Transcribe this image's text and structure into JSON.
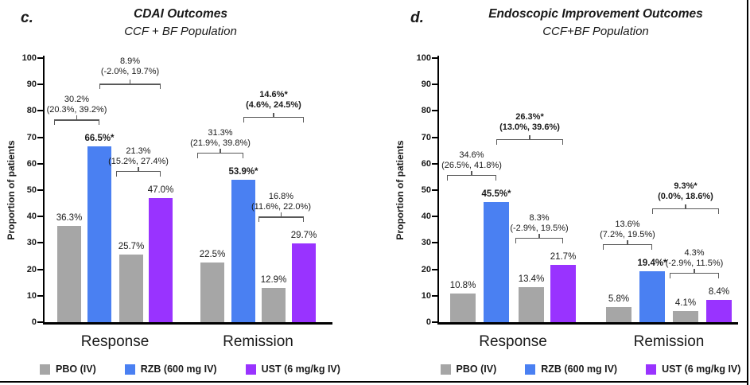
{
  "chart_data": [
    {
      "type": "bar",
      "panel_label": "c.",
      "title": "CDAI Outcomes",
      "subtitle": "CCF + BF Population",
      "ylabel": "Proportion of patients",
      "ylim": [
        0,
        100
      ],
      "yticks": [
        0,
        10,
        20,
        30,
        40,
        50,
        60,
        70,
        80,
        90,
        100
      ],
      "grid": false,
      "legend_position": "bottom",
      "categories": [
        "Response",
        "Remission"
      ],
      "groups": [
        {
          "category": "Response",
          "bars": [
            {
              "series": "PBO (IV)",
              "value": 36.3,
              "label": "36.3%",
              "bold": false
            },
            {
              "series": "RZB (600 mg IV)",
              "value": 66.5,
              "label": "66.5%*",
              "bold": true
            },
            {
              "series": "PBO (IV)",
              "value": 25.7,
              "label": "25.7%",
              "bold": false
            },
            {
              "series": "UST (6 mg/kg IV)",
              "value": 47.0,
              "label": "47.0%",
              "bold": false
            }
          ],
          "comparisons": [
            {
              "between": [
                0,
                1
              ],
              "level": "pair",
              "estimate": "30.2%",
              "ci": "(20.3%, 39.2%)",
              "bold": false
            },
            {
              "between": [
                2,
                3
              ],
              "level": "pair",
              "estimate": "21.3%",
              "ci": "(15.2%, 27.4%)",
              "bold": false
            },
            {
              "between": [
                1,
                3
              ],
              "level": "top",
              "estimate": "8.9%",
              "ci": "(-2.0%, 19.7%)",
              "bold": false
            }
          ]
        },
        {
          "category": "Remission",
          "bars": [
            {
              "series": "PBO (IV)",
              "value": 22.5,
              "label": "22.5%",
              "bold": false
            },
            {
              "series": "RZB (600 mg IV)",
              "value": 53.9,
              "label": "53.9%*",
              "bold": true
            },
            {
              "series": "PBO (IV)",
              "value": 12.9,
              "label": "12.9%",
              "bold": false
            },
            {
              "series": "UST (6 mg/kg IV)",
              "value": 29.7,
              "label": "29.7%",
              "bold": false
            }
          ],
          "comparisons": [
            {
              "between": [
                0,
                1
              ],
              "level": "pair",
              "estimate": "31.3%",
              "ci": "(21.9%, 39.8%)",
              "bold": false
            },
            {
              "between": [
                2,
                3
              ],
              "level": "pair",
              "estimate": "16.8%",
              "ci": "(11.6%, 22.0%)",
              "bold": false
            },
            {
              "between": [
                1,
                3
              ],
              "level": "top",
              "estimate": "14.6%*",
              "ci": "(4.6%, 24.5%)",
              "bold": true
            }
          ]
        }
      ]
    },
    {
      "type": "bar",
      "panel_label": "d.",
      "title": "Endoscopic Improvement Outcomes",
      "subtitle": "CCF+BF Population",
      "ylabel": "Proportion of patients",
      "ylim": [
        0,
        100
      ],
      "yticks": [
        0,
        10,
        20,
        30,
        40,
        50,
        60,
        70,
        80,
        90,
        100
      ],
      "grid": false,
      "legend_position": "bottom",
      "categories": [
        "Response",
        "Remission"
      ],
      "groups": [
        {
          "category": "Response",
          "bars": [
            {
              "series": "PBO (IV)",
              "value": 10.8,
              "label": "10.8%",
              "bold": false
            },
            {
              "series": "RZB (600 mg IV)",
              "value": 45.5,
              "label": "45.5%*",
              "bold": true
            },
            {
              "series": "PBO (IV)",
              "value": 13.4,
              "label": "13.4%",
              "bold": false
            },
            {
              "series": "UST (6 mg/kg IV)",
              "value": 21.7,
              "label": "21.7%",
              "bold": false
            }
          ],
          "comparisons": [
            {
              "between": [
                0,
                1
              ],
              "level": "pair",
              "estimate": "34.6%",
              "ci": "(26.5%, 41.8%)",
              "bold": false
            },
            {
              "between": [
                2,
                3
              ],
              "level": "pair",
              "estimate": "8.3%",
              "ci": "(-2.9%, 19.5%)",
              "bold": false
            },
            {
              "between": [
                1,
                3
              ],
              "level": "top",
              "estimate": "26.3%*",
              "ci": "(13.0%, 39.6%)",
              "bold": true
            }
          ]
        },
        {
          "category": "Remission",
          "bars": [
            {
              "series": "PBO (IV)",
              "value": 5.8,
              "label": "5.8%",
              "bold": false
            },
            {
              "series": "RZB (600 mg IV)",
              "value": 19.4,
              "label": "19.4%*",
              "bold": true
            },
            {
              "series": "PBO (IV)",
              "value": 4.1,
              "label": "4.1%",
              "bold": false
            },
            {
              "series": "UST (6 mg/kg IV)",
              "value": 8.4,
              "label": "8.4%",
              "bold": false
            }
          ],
          "comparisons": [
            {
              "between": [
                0,
                1
              ],
              "level": "pair",
              "estimate": "13.6%",
              "ci": "(7.2%, 19.5%)",
              "bold": false
            },
            {
              "between": [
                2,
                3
              ],
              "level": "pair",
              "estimate": "4.3%",
              "ci": "(-2.9%, 11.5%)",
              "bold": false
            },
            {
              "between": [
                1,
                3
              ],
              "level": "top",
              "estimate": "9.3%*",
              "ci": "(0.0%, 18.6%)",
              "bold": true
            }
          ]
        }
      ]
    }
  ],
  "legend": [
    {
      "label": "PBO (IV)",
      "color": "#A6A6A6"
    },
    {
      "label": "RZB (600 mg IV)",
      "color": "#4A80F2"
    },
    {
      "label": "UST (6 mg/kg IV)",
      "color": "#9933FF"
    }
  ],
  "colors": {
    "axis": "#000000",
    "bracket": "#595959",
    "text": "#1A1A1A",
    "background": "#FFFFFF"
  }
}
